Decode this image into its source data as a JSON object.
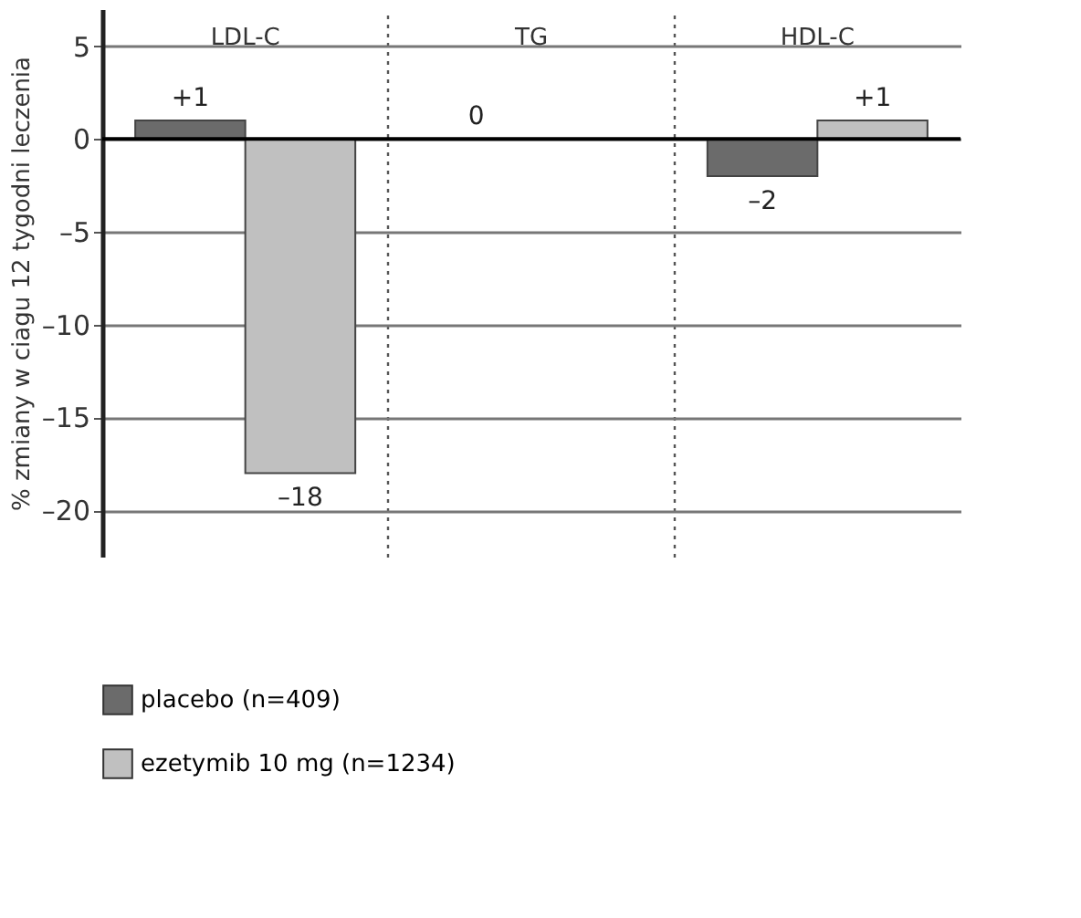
{
  "chart_data": {
    "type": "bar",
    "ylabel": "% zmiany w ciagu 12 tygodni leczenia",
    "categories": [
      "LDL-C",
      "TG",
      "HDL-C"
    ],
    "series": [
      {
        "name": "placebo (n=409)",
        "color": "#6b6b6b",
        "values": [
          1,
          0,
          -2
        ],
        "value_labels": [
          "+1",
          "0",
          "–2"
        ]
      },
      {
        "name": "ezetymib 10 mg (n=1234)",
        "color": "#c0c0c0",
        "values": [
          -18,
          null,
          1
        ],
        "value_labels": [
          "–18",
          null,
          "+1"
        ]
      }
    ],
    "ylim": [
      -22.5,
      7
    ],
    "yticks": [
      {
        "value": -20,
        "label": "–20"
      },
      {
        "value": -15,
        "label": "–15"
      },
      {
        "value": -10,
        "label": "–10"
      },
      {
        "value": -5,
        "label": "–5"
      },
      0,
      5
    ],
    "ref_lines": [
      {
        "axis": "y",
        "value": 0,
        "color": "#000000"
      }
    ],
    "grid": true,
    "legend": "bottom"
  }
}
